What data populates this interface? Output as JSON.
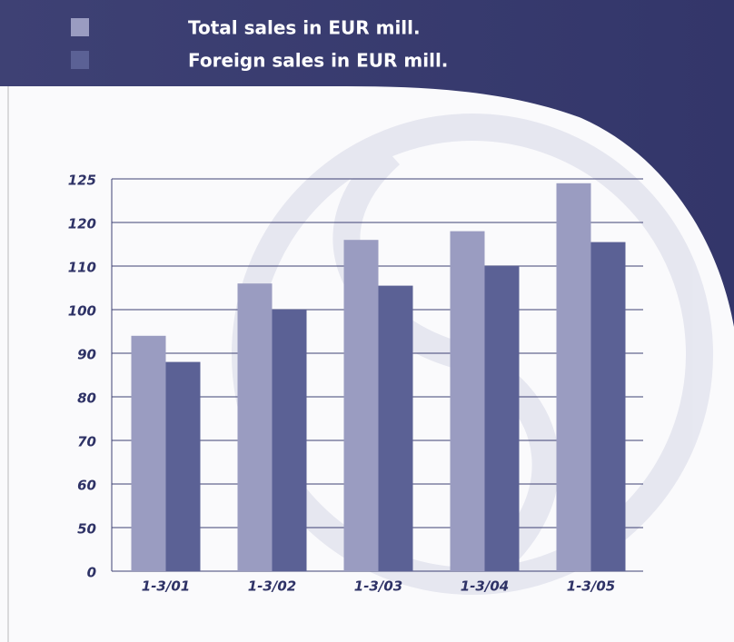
{
  "chart_data": {
    "type": "bar",
    "categories": [
      "1-3/01",
      "1-3/02",
      "1-3/03",
      "1-3/04",
      "1-3/05"
    ],
    "series": [
      {
        "name": "Total sales in EUR mill.",
        "color": "#9a9cc1",
        "values": [
          94,
          106,
          116,
          118,
          124.5
        ]
      },
      {
        "name": "Foreign sales in EUR mill.",
        "color": "#5b6195",
        "values": [
          88,
          100,
          105.5,
          110,
          115.5
        ]
      }
    ],
    "ylim": [
      0,
      125
    ],
    "yticks": [
      0,
      50,
      60,
      70,
      80,
      90,
      100,
      110,
      120,
      125
    ],
    "grid": true
  }
}
